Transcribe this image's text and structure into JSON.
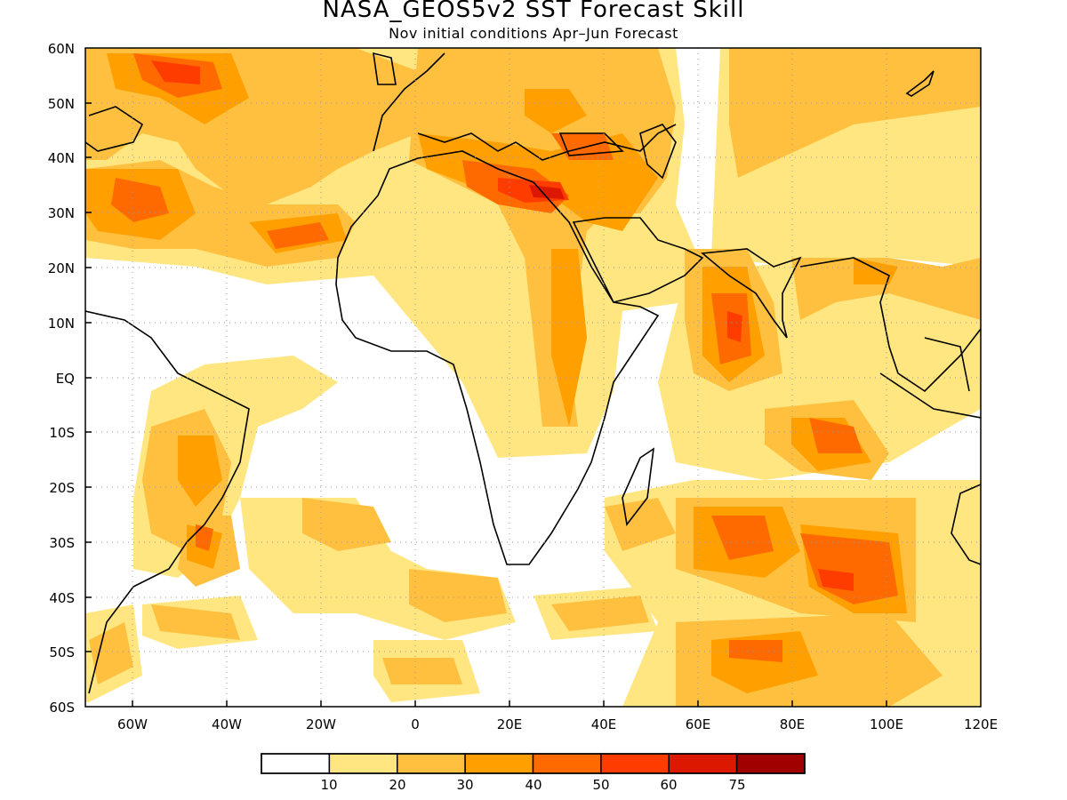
{
  "title": "NASA_GEOS5v2  SST Forecast Skill",
  "subtitle": "Nov initial conditions  Apr–Jun Forecast",
  "map": {
    "lon_range": [
      -70,
      120
    ],
    "lat_range": [
      -60,
      60
    ],
    "x_ticks": [
      "60W",
      "40W",
      "20W",
      "0",
      "20E",
      "40E",
      "60E",
      "80E",
      "100E",
      "120E"
    ],
    "y_ticks": [
      "60N",
      "50N",
      "40N",
      "30N",
      "20N",
      "10N",
      "EQ",
      "10S",
      "20S",
      "30S",
      "40S",
      "50S",
      "60S"
    ],
    "grid": "dotted"
  },
  "colorbar": {
    "labels": [
      "10",
      "20",
      "30",
      "40",
      "50",
      "60",
      "75"
    ],
    "colors": [
      "#ffffff",
      "#ffe680",
      "#ffc040",
      "#ffa000",
      "#ff6a00",
      "#ff3c00",
      "#dd1800",
      "#a00000"
    ]
  }
}
